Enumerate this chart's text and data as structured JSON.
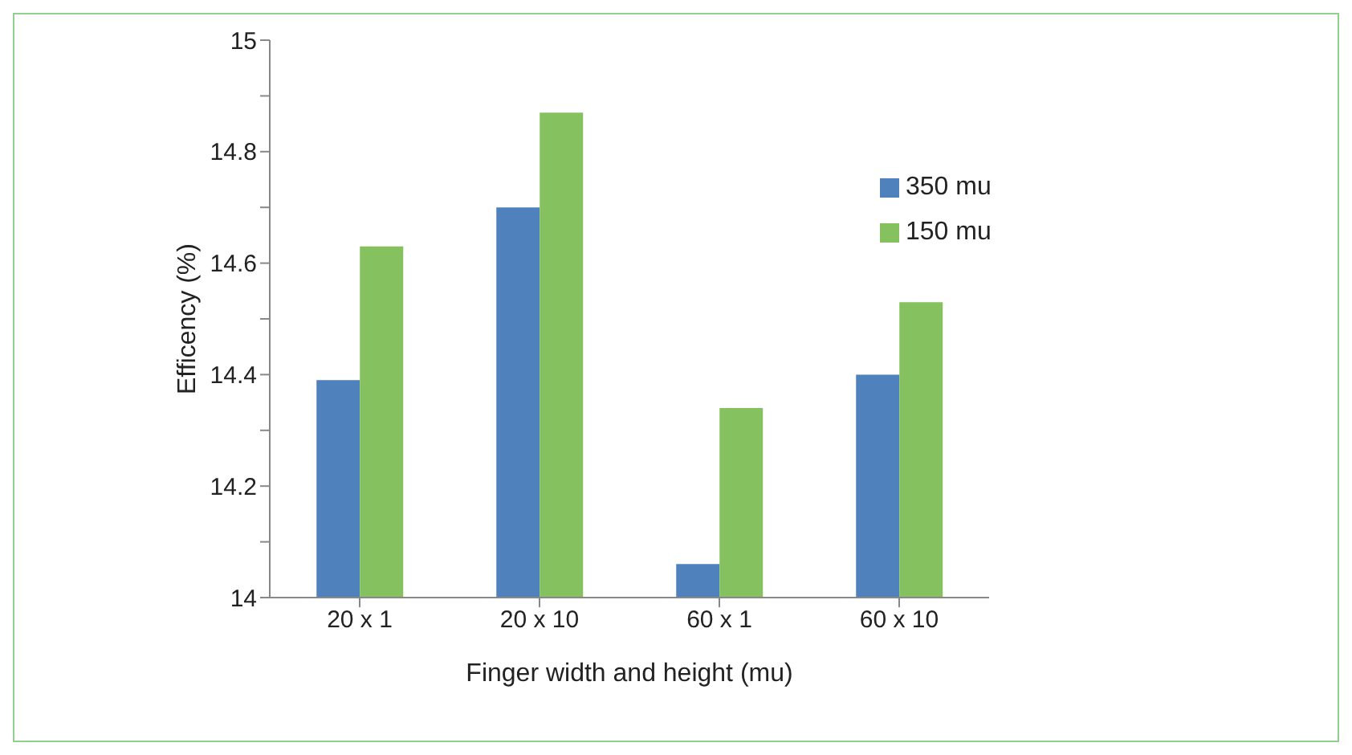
{
  "chart_data": {
    "type": "bar",
    "xlabel": "Finger width and height (mu)",
    "ylabel": "Efficency (%)",
    "categories": [
      "20 x 1",
      "20 x 10",
      "60 x 1",
      "60 x 10"
    ],
    "series": [
      {
        "name": "350 mu",
        "color": "#4f81bd",
        "values": [
          14.39,
          14.7,
          14.06,
          14.4
        ]
      },
      {
        "name": "150 mu",
        "color": "#86c15f",
        "values": [
          14.63,
          14.87,
          14.34,
          14.53
        ]
      }
    ],
    "ylim": [
      14,
      15
    ],
    "yticks": [
      14,
      {
        "value": 14.1,
        "label": null
      },
      14.2,
      {
        "value": 14.3,
        "label": null
      },
      14.4,
      {
        "value": 14.5,
        "label": null
      },
      14.6,
      {
        "value": 14.7,
        "label": null
      },
      14.8,
      {
        "value": 14.9,
        "label": null
      },
      15
    ],
    "grid": false,
    "legend": "top right"
  }
}
